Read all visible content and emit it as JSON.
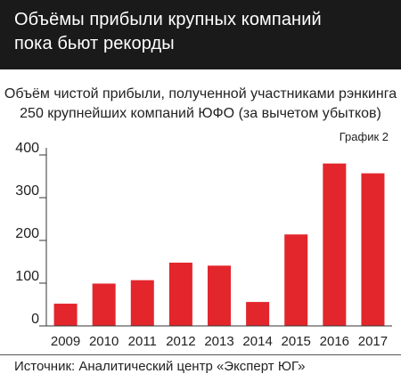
{
  "header": {
    "title_line1": "Объёмы прибыли крупных компаний",
    "title_line2": "пока бьют рекорды"
  },
  "subtitle": {
    "line1": "Объём чистой прибыли, полученной участниками рэнкинга",
    "line2": "250 крупнейших компаний ЮФО (за вычетом убытков)"
  },
  "graph_label": "График 2",
  "source": "Источник: Аналитический центр «Эксперт ЮГ»",
  "colors": {
    "bar": "#e3262c",
    "header_bg": "#1a1a1a",
    "axis": "#333333"
  },
  "chart_data": {
    "type": "bar",
    "categories": [
      "2009",
      "2010",
      "2011",
      "2012",
      "2013",
      "2014",
      "2015",
      "2016",
      "2017"
    ],
    "values": [
      52,
      99,
      107,
      148,
      141,
      56,
      214,
      380,
      357
    ],
    "ylim": [
      0,
      400
    ],
    "yticks": [
      0,
      100,
      200,
      300,
      400
    ],
    "grid": false
  }
}
